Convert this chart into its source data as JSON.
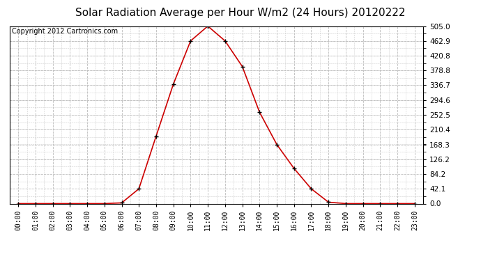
{
  "title": "Solar Radiation Average per Hour W/m2 (24 Hours) 20120222",
  "copyright": "Copyright 2012 Cartronics.com",
  "hours": [
    "00:00",
    "01:00",
    "02:00",
    "03:00",
    "04:00",
    "05:00",
    "06:00",
    "07:00",
    "08:00",
    "09:00",
    "10:00",
    "11:00",
    "12:00",
    "13:00",
    "14:00",
    "15:00",
    "16:00",
    "17:00",
    "18:00",
    "19:00",
    "20:00",
    "21:00",
    "22:00",
    "23:00"
  ],
  "values": [
    0.0,
    0.0,
    0.0,
    0.0,
    0.0,
    0.0,
    2.0,
    42.1,
    192.0,
    340.0,
    462.9,
    505.0,
    462.9,
    390.0,
    260.0,
    168.3,
    100.0,
    42.1,
    4.0,
    0.0,
    0.0,
    0.0,
    0.0,
    0.0
  ],
  "line_color": "#cc0000",
  "marker_color": "#000000",
  "bg_color": "#ffffff",
  "grid_color": "#bbbbbb",
  "yticks": [
    0.0,
    42.1,
    84.2,
    126.2,
    168.3,
    210.4,
    252.5,
    294.6,
    336.7,
    378.8,
    420.8,
    462.9,
    505.0
  ],
  "ymax": 505.0,
  "ymin": 0.0,
  "title_fontsize": 11,
  "copyright_fontsize": 7,
  "tick_fontsize": 7,
  "ytick_fontsize": 7.5
}
